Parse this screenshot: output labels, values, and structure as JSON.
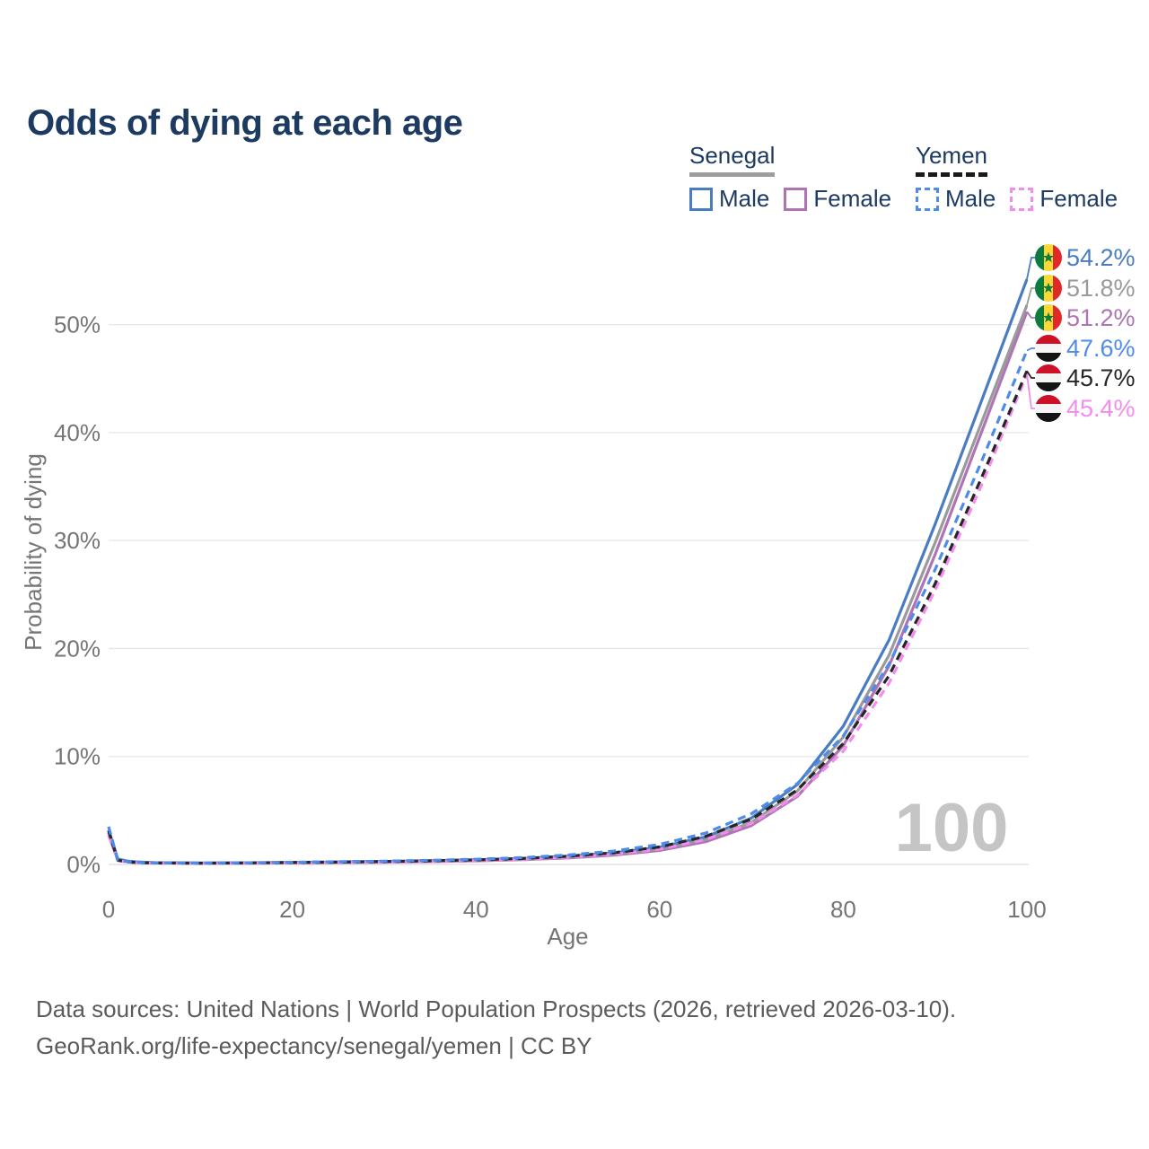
{
  "title": "Odds of dying at each age",
  "legend": {
    "senegal": {
      "label": "Senegal",
      "male": "Male",
      "female": "Female"
    },
    "yemen": {
      "label": "Yemen",
      "male": "Male",
      "female": "Female"
    }
  },
  "watermark": "100",
  "footer": {
    "line1": "Data sources: United Nations | World Population Prospects (2026, retrieved 2026-03-10).",
    "line2": "GeoRank.org/life-expectancy/senegal/yemen | CC BY"
  },
  "colors": {
    "title": "#1d3a60",
    "axis_text": "#757575",
    "gridline": "#e6e6e6",
    "axis_line": "#dcdcdc",
    "watermark": "#c5c5c5",
    "senegal_male": "#4a7cc1",
    "senegal_all": "#9a9a9a",
    "senegal_female": "#ae74b4",
    "yemen_male": "#4f8bea",
    "yemen_all": "#262626",
    "yemen_female": "#f68bef"
  },
  "flags": {
    "senegal": [
      "#0b7b3e",
      "#fdd835",
      "#e02a2a"
    ],
    "senegal_star": "#0b7b3e",
    "yemen": [
      "#ce1126",
      "#f5f5f5",
      "#141414"
    ]
  },
  "chart_data": {
    "type": "line",
    "title": "Odds of dying at each age",
    "xlabel": "Age",
    "ylabel": "Probability of dying",
    "x_ticks": [
      0,
      20,
      40,
      60,
      80,
      100
    ],
    "y_ticks": [
      "0%",
      "10%",
      "20%",
      "30%",
      "40%",
      "50%"
    ],
    "xlim": [
      0,
      100
    ],
    "ylim": [
      0,
      55
    ],
    "grid": "horizontal-only",
    "legend_position": "top-right",
    "ages": [
      0,
      1,
      2,
      3,
      4,
      5,
      10,
      15,
      20,
      25,
      30,
      35,
      40,
      45,
      50,
      55,
      60,
      65,
      70,
      75,
      80,
      85,
      90,
      95,
      100
    ],
    "series": [
      {
        "id": "senegal-male",
        "name": "Senegal Male",
        "country": "Senegal",
        "sex": "Male",
        "style": "solid",
        "flag": "senegal",
        "color": "#4a7cc1",
        "end_label": "54.2%",
        "values": [
          3.2,
          0.5,
          0.32,
          0.24,
          0.2,
          0.17,
          0.13,
          0.15,
          0.19,
          0.23,
          0.28,
          0.34,
          0.43,
          0.56,
          0.76,
          1.07,
          1.6,
          2.55,
          4.3,
          7.4,
          12.8,
          20.8,
          31.5,
          42.8,
          54.2
        ]
      },
      {
        "id": "senegal-both",
        "name": "Senegal Both sexes",
        "country": "Senegal",
        "sex": "Both",
        "style": "solid",
        "flag": "senegal",
        "color": "#9a9a9a",
        "end_label": "51.8%",
        "values": [
          2.95,
          0.47,
          0.3,
          0.22,
          0.18,
          0.16,
          0.12,
          0.13,
          0.16,
          0.2,
          0.24,
          0.3,
          0.38,
          0.5,
          0.68,
          0.96,
          1.44,
          2.3,
          3.9,
          6.8,
          11.8,
          19.4,
          29.8,
          40.8,
          51.8
        ]
      },
      {
        "id": "senegal-female",
        "name": "Senegal Female",
        "country": "Senegal",
        "sex": "Female",
        "style": "solid",
        "flag": "senegal",
        "color": "#ae74b4",
        "end_label": "51.2%",
        "values": [
          2.7,
          0.44,
          0.28,
          0.21,
          0.17,
          0.15,
          0.11,
          0.12,
          0.14,
          0.17,
          0.21,
          0.26,
          0.33,
          0.44,
          0.6,
          0.86,
          1.3,
          2.1,
          3.6,
          6.3,
          11.0,
          18.4,
          28.7,
          39.9,
          51.2
        ]
      },
      {
        "id": "yemen-male",
        "name": "Yemen Male",
        "country": "Yemen",
        "sex": "Male",
        "style": "dashed",
        "flag": "yemen",
        "color": "#4f8bea",
        "end_label": "47.6%",
        "values": [
          3.5,
          0.42,
          0.26,
          0.2,
          0.17,
          0.15,
          0.13,
          0.16,
          0.21,
          0.26,
          0.31,
          0.38,
          0.48,
          0.63,
          0.87,
          1.24,
          1.85,
          2.9,
          4.7,
          7.5,
          11.9,
          18.6,
          27.3,
          37.2,
          47.6
        ]
      },
      {
        "id": "yemen-both",
        "name": "Yemen Both sexes",
        "country": "Yemen",
        "sex": "Both",
        "style": "dashed",
        "flag": "yemen",
        "color": "#262626",
        "end_label": "45.7%",
        "values": [
          3.1,
          0.39,
          0.24,
          0.18,
          0.15,
          0.14,
          0.12,
          0.14,
          0.18,
          0.22,
          0.27,
          0.33,
          0.42,
          0.55,
          0.76,
          1.08,
          1.62,
          2.6,
          4.2,
          6.9,
          11.2,
          17.5,
          26.0,
          35.7,
          45.7
        ]
      },
      {
        "id": "yemen-female",
        "name": "Yemen Female",
        "country": "Yemen",
        "sex": "Female",
        "style": "dashed",
        "flag": "yemen",
        "color": "#f68bef",
        "end_label": "45.4%",
        "values": [
          2.75,
          0.36,
          0.22,
          0.17,
          0.14,
          0.12,
          0.1,
          0.12,
          0.15,
          0.18,
          0.22,
          0.28,
          0.36,
          0.48,
          0.66,
          0.94,
          1.42,
          2.3,
          3.8,
          6.4,
          10.5,
          16.8,
          25.4,
          35.0,
          45.4
        ]
      }
    ]
  }
}
